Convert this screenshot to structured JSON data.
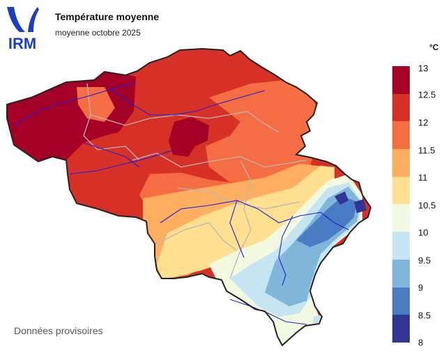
{
  "brand": {
    "logo_text": "IRM",
    "color": "#1a3fbf"
  },
  "header": {
    "title": "Température moyenne",
    "subtitle": "moyenne octobre 2025"
  },
  "legend": {
    "unit": "°C",
    "stops": [
      {
        "label": "13",
        "color": "#a50026"
      },
      {
        "label": "12.5",
        "color": "#d73027"
      },
      {
        "label": "12",
        "color": "#f46d43"
      },
      {
        "label": "11.5",
        "color": "#fdae61"
      },
      {
        "label": "11",
        "color": "#fee090"
      },
      {
        "label": "10.5",
        "color": "#f2f9e1"
      },
      {
        "label": "10",
        "color": "#c6e5f3"
      },
      {
        "label": "9.5",
        "color": "#7fb6da"
      },
      {
        "label": "9",
        "color": "#4a7cc3"
      },
      {
        "label": "8.5",
        "color": "#313695"
      },
      {
        "label": "8",
        "color": ""
      }
    ]
  },
  "map": {
    "region": "Belgique",
    "zones": [
      {
        "name": "west-flanders",
        "value": "13"
      },
      {
        "name": "brabant-hotspot",
        "value": "13"
      },
      {
        "name": "central",
        "value": "12.5"
      },
      {
        "name": "hainaut-namur",
        "value": "11.5"
      },
      {
        "name": "condroz",
        "value": "11"
      },
      {
        "name": "ardennes",
        "value": "9.5"
      },
      {
        "name": "high-fens",
        "value": "8.5"
      }
    ]
  },
  "footer": {
    "note": "Données provisoires"
  }
}
